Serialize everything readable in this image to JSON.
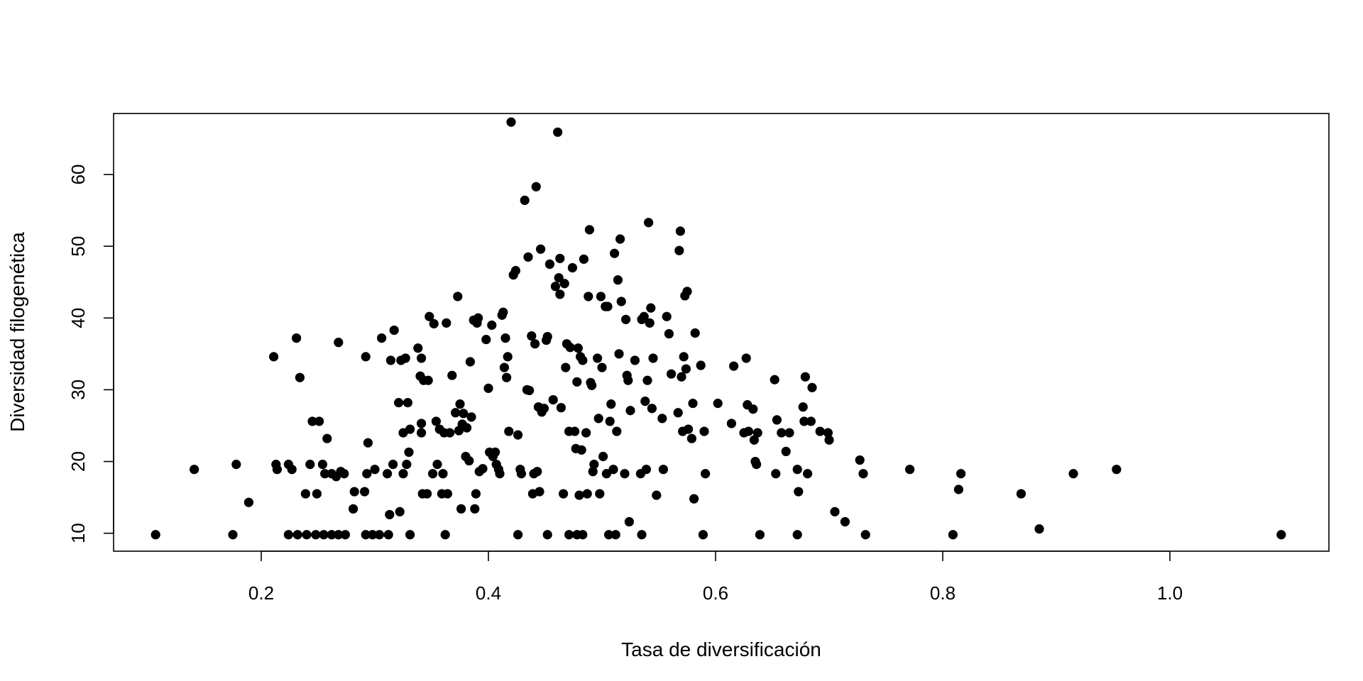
{
  "chart_data": {
    "type": "scatter",
    "title": "",
    "xlabel": "Tasa de diversificación",
    "ylabel": "Diversidad filogenética",
    "xlim": [
      0.07,
      1.14
    ],
    "ylim": [
      7.5,
      68.5
    ],
    "xticks": [
      0.2,
      0.4,
      0.6,
      0.8,
      1.0
    ],
    "xtick_labels": [
      "0.2",
      "0.4",
      "0.6",
      "0.8",
      "1.0"
    ],
    "yticks": [
      10,
      20,
      30,
      40,
      50,
      60
    ],
    "ytick_labels": [
      "10",
      "20",
      "30",
      "40",
      "50",
      "60"
    ],
    "grid": false,
    "legend": false,
    "marker_color": "#000000",
    "series": [
      {
        "points": [
          [
            0.107,
            9.8
          ],
          [
            0.175,
            9.8
          ],
          [
            0.224,
            9.8
          ],
          [
            0.232,
            9.8
          ],
          [
            0.24,
            9.8
          ],
          [
            0.248,
            9.8
          ],
          [
            0.255,
            9.8
          ],
          [
            0.262,
            9.8
          ],
          [
            0.268,
            9.8
          ],
          [
            0.274,
            9.8
          ],
          [
            0.292,
            9.8
          ],
          [
            0.298,
            9.8
          ],
          [
            0.304,
            9.8
          ],
          [
            0.312,
            9.8
          ],
          [
            0.331,
            9.8
          ],
          [
            0.362,
            9.8
          ],
          [
            0.426,
            9.8
          ],
          [
            0.452,
            9.8
          ],
          [
            0.471,
            9.8
          ],
          [
            0.478,
            9.8
          ],
          [
            0.483,
            9.8
          ],
          [
            0.506,
            9.8
          ],
          [
            0.512,
            9.8
          ],
          [
            0.535,
            9.8
          ],
          [
            0.589,
            9.8
          ],
          [
            0.639,
            9.8
          ],
          [
            0.672,
            9.8
          ],
          [
            0.732,
            9.8
          ],
          [
            0.809,
            9.8
          ],
          [
            1.098,
            9.8
          ],
          [
            0.141,
            18.9
          ],
          [
            0.178,
            19.6
          ],
          [
            0.189,
            14.3
          ],
          [
            0.211,
            34.6
          ],
          [
            0.213,
            19.6
          ],
          [
            0.214,
            18.9
          ],
          [
            0.224,
            19.6
          ],
          [
            0.227,
            18.9
          ],
          [
            0.231,
            37.2
          ],
          [
            0.234,
            31.7
          ],
          [
            0.239,
            15.5
          ],
          [
            0.243,
            19.6
          ],
          [
            0.245,
            25.6
          ],
          [
            0.249,
            15.5
          ],
          [
            0.251,
            25.6
          ],
          [
            0.254,
            19.6
          ],
          [
            0.256,
            18.3
          ],
          [
            0.258,
            23.2
          ],
          [
            0.262,
            18.3
          ],
          [
            0.266,
            17.9
          ],
          [
            0.268,
            36.6
          ],
          [
            0.27,
            18.6
          ],
          [
            0.273,
            18.3
          ],
          [
            0.281,
            13.4
          ],
          [
            0.282,
            15.8
          ],
          [
            0.291,
            15.8
          ],
          [
            0.292,
            34.6
          ],
          [
            0.293,
            18.3
          ],
          [
            0.294,
            22.6
          ],
          [
            0.3,
            18.9
          ],
          [
            0.306,
            37.2
          ],
          [
            0.311,
            18.3
          ],
          [
            0.313,
            12.6
          ],
          [
            0.314,
            34.1
          ],
          [
            0.316,
            19.6
          ],
          [
            0.317,
            38.3
          ],
          [
            0.321,
            28.2
          ],
          [
            0.322,
            13.0
          ],
          [
            0.323,
            34.1
          ],
          [
            0.325,
            24.0
          ],
          [
            0.325,
            18.3
          ],
          [
            0.327,
            34.4
          ],
          [
            0.328,
            19.6
          ],
          [
            0.329,
            28.2
          ],
          [
            0.33,
            21.3
          ],
          [
            0.331,
            24.5
          ],
          [
            0.338,
            35.8
          ],
          [
            0.34,
            31.9
          ],
          [
            0.341,
            25.3
          ],
          [
            0.341,
            34.4
          ],
          [
            0.341,
            24.0
          ],
          [
            0.342,
            15.5
          ],
          [
            0.343,
            31.3
          ],
          [
            0.346,
            15.5
          ],
          [
            0.347,
            31.3
          ],
          [
            0.348,
            40.2
          ],
          [
            0.351,
            18.3
          ],
          [
            0.352,
            39.2
          ],
          [
            0.354,
            25.6
          ],
          [
            0.355,
            19.6
          ],
          [
            0.357,
            24.5
          ],
          [
            0.359,
            15.5
          ],
          [
            0.36,
            18.3
          ],
          [
            0.361,
            24.0
          ],
          [
            0.363,
            39.3
          ],
          [
            0.364,
            15.5
          ],
          [
            0.366,
            24.0
          ],
          [
            0.368,
            32.0
          ],
          [
            0.371,
            26.8
          ],
          [
            0.373,
            43.0
          ],
          [
            0.374,
            24.3
          ],
          [
            0.375,
            28.0
          ],
          [
            0.376,
            13.4
          ],
          [
            0.377,
            25.2
          ],
          [
            0.378,
            26.7
          ],
          [
            0.38,
            20.7
          ],
          [
            0.381,
            24.7
          ],
          [
            0.383,
            20.1
          ],
          [
            0.384,
            33.9
          ],
          [
            0.385,
            26.2
          ],
          [
            0.387,
            39.7
          ],
          [
            0.388,
            13.4
          ],
          [
            0.389,
            15.5
          ],
          [
            0.39,
            39.3
          ],
          [
            0.391,
            40.0
          ],
          [
            0.392,
            18.6
          ],
          [
            0.395,
            19.0
          ],
          [
            0.398,
            37.0
          ],
          [
            0.4,
            30.2
          ],
          [
            0.401,
            21.3
          ],
          [
            0.403,
            39.0
          ],
          [
            0.404,
            20.7
          ],
          [
            0.406,
            21.3
          ],
          [
            0.407,
            19.6
          ],
          [
            0.409,
            18.9
          ],
          [
            0.41,
            18.3
          ],
          [
            0.412,
            40.4
          ],
          [
            0.413,
            40.8
          ],
          [
            0.414,
            33.1
          ],
          [
            0.415,
            37.2
          ],
          [
            0.416,
            31.7
          ],
          [
            0.417,
            34.6
          ],
          [
            0.418,
            24.2
          ],
          [
            0.42,
            67.3
          ],
          [
            0.422,
            46.0
          ],
          [
            0.424,
            46.6
          ],
          [
            0.426,
            23.7
          ],
          [
            0.428,
            18.9
          ],
          [
            0.429,
            18.3
          ],
          [
            0.432,
            56.4
          ],
          [
            0.434,
            30.0
          ],
          [
            0.435,
            48.5
          ],
          [
            0.436,
            29.9
          ],
          [
            0.438,
            37.5
          ],
          [
            0.439,
            15.5
          ],
          [
            0.44,
            18.3
          ],
          [
            0.441,
            36.4
          ],
          [
            0.442,
            58.3
          ],
          [
            0.443,
            18.6
          ],
          [
            0.444,
            27.6
          ],
          [
            0.445,
            15.8
          ],
          [
            0.446,
            49.6
          ],
          [
            0.447,
            26.9
          ],
          [
            0.449,
            27.4
          ],
          [
            0.451,
            36.9
          ],
          [
            0.452,
            37.4
          ],
          [
            0.454,
            47.5
          ],
          [
            0.457,
            28.6
          ],
          [
            0.459,
            44.4
          ],
          [
            0.461,
            65.9
          ],
          [
            0.462,
            45.6
          ],
          [
            0.463,
            48.3
          ],
          [
            0.463,
            43.3
          ],
          [
            0.464,
            27.5
          ],
          [
            0.466,
            15.5
          ],
          [
            0.467,
            44.8
          ],
          [
            0.468,
            33.1
          ],
          [
            0.469,
            36.4
          ],
          [
            0.471,
            24.2
          ],
          [
            0.472,
            35.9
          ],
          [
            0.474,
            47.0
          ],
          [
            0.476,
            24.2
          ],
          [
            0.477,
            21.8
          ],
          [
            0.478,
            31.1
          ],
          [
            0.479,
            35.8
          ],
          [
            0.48,
            15.3
          ],
          [
            0.481,
            34.6
          ],
          [
            0.482,
            21.6
          ],
          [
            0.483,
            34.1
          ],
          [
            0.484,
            48.2
          ],
          [
            0.486,
            24.0
          ],
          [
            0.487,
            15.5
          ],
          [
            0.488,
            43.0
          ],
          [
            0.489,
            52.3
          ],
          [
            0.49,
            31.0
          ],
          [
            0.491,
            30.6
          ],
          [
            0.492,
            18.6
          ],
          [
            0.493,
            19.6
          ],
          [
            0.496,
            34.4
          ],
          [
            0.497,
            26.0
          ],
          [
            0.498,
            15.5
          ],
          [
            0.499,
            43.0
          ],
          [
            0.5,
            33.1
          ],
          [
            0.501,
            20.7
          ],
          [
            0.503,
            41.6
          ],
          [
            0.504,
            18.3
          ],
          [
            0.505,
            41.6
          ],
          [
            0.507,
            25.6
          ],
          [
            0.508,
            28.0
          ],
          [
            0.51,
            18.9
          ],
          [
            0.511,
            49.0
          ],
          [
            0.513,
            24.2
          ],
          [
            0.514,
            45.3
          ],
          [
            0.515,
            35.0
          ],
          [
            0.516,
            51.0
          ],
          [
            0.517,
            42.3
          ],
          [
            0.52,
            18.3
          ],
          [
            0.521,
            39.8
          ],
          [
            0.522,
            32.0
          ],
          [
            0.523,
            31.3
          ],
          [
            0.524,
            11.6
          ],
          [
            0.525,
            27.1
          ],
          [
            0.529,
            34.1
          ],
          [
            0.534,
            18.3
          ],
          [
            0.535,
            39.8
          ],
          [
            0.537,
            40.2
          ],
          [
            0.538,
            28.4
          ],
          [
            0.539,
            18.9
          ],
          [
            0.54,
            31.3
          ],
          [
            0.541,
            53.3
          ],
          [
            0.542,
            39.3
          ],
          [
            0.543,
            41.4
          ],
          [
            0.544,
            27.4
          ],
          [
            0.545,
            34.4
          ],
          [
            0.548,
            15.3
          ],
          [
            0.553,
            26.0
          ],
          [
            0.554,
            18.9
          ],
          [
            0.557,
            40.2
          ],
          [
            0.559,
            37.8
          ],
          [
            0.561,
            32.2
          ],
          [
            0.567,
            26.8
          ],
          [
            0.568,
            49.4
          ],
          [
            0.569,
            52.1
          ],
          [
            0.57,
            31.8
          ],
          [
            0.571,
            24.2
          ],
          [
            0.572,
            34.6
          ],
          [
            0.573,
            43.1
          ],
          [
            0.574,
            32.9
          ],
          [
            0.575,
            43.7
          ],
          [
            0.576,
            24.5
          ],
          [
            0.579,
            23.2
          ],
          [
            0.58,
            28.1
          ],
          [
            0.581,
            14.8
          ],
          [
            0.582,
            37.9
          ],
          [
            0.587,
            33.4
          ],
          [
            0.59,
            24.2
          ],
          [
            0.591,
            18.3
          ],
          [
            0.602,
            28.1
          ],
          [
            0.614,
            25.3
          ],
          [
            0.616,
            33.3
          ],
          [
            0.625,
            24.0
          ],
          [
            0.627,
            34.4
          ],
          [
            0.628,
            27.9
          ],
          [
            0.629,
            24.2
          ],
          [
            0.633,
            27.3
          ],
          [
            0.634,
            23.0
          ],
          [
            0.635,
            20.0
          ],
          [
            0.636,
            19.6
          ],
          [
            0.637,
            24.0
          ],
          [
            0.652,
            31.4
          ],
          [
            0.653,
            18.3
          ],
          [
            0.654,
            25.8
          ],
          [
            0.658,
            24.0
          ],
          [
            0.662,
            21.4
          ],
          [
            0.665,
            24.0
          ],
          [
            0.672,
            18.9
          ],
          [
            0.673,
            15.8
          ],
          [
            0.677,
            27.6
          ],
          [
            0.678,
            25.6
          ],
          [
            0.679,
            31.8
          ],
          [
            0.681,
            18.3
          ],
          [
            0.684,
            25.6
          ],
          [
            0.685,
            30.3
          ],
          [
            0.692,
            24.2
          ],
          [
            0.699,
            24.0
          ],
          [
            0.7,
            23.0
          ],
          [
            0.705,
            13.0
          ],
          [
            0.714,
            11.6
          ],
          [
            0.727,
            20.2
          ],
          [
            0.73,
            18.3
          ],
          [
            0.771,
            18.9
          ],
          [
            0.814,
            16.1
          ],
          [
            0.816,
            18.3
          ],
          [
            0.869,
            15.5
          ],
          [
            0.885,
            10.6
          ],
          [
            0.915,
            18.3
          ],
          [
            0.953,
            18.9
          ]
        ]
      }
    ]
  }
}
